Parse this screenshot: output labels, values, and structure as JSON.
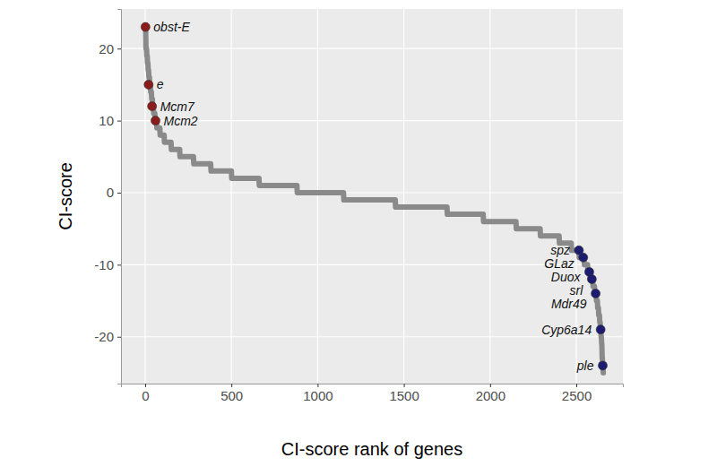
{
  "chart_data": {
    "type": "scatter",
    "x_label": "CI-score rank of genes",
    "y_label": "CI-score",
    "xlim": [
      -140,
      2770
    ],
    "ylim": [
      -26.5,
      25.5
    ],
    "xticks": [
      0,
      500,
      1000,
      1500,
      2000,
      2500
    ],
    "yticks": [
      -20,
      -10,
      0,
      10,
      20
    ],
    "grid": true,
    "series": [
      {
        "type": "line",
        "color": "#8a8a8a",
        "x": [
          0,
          3,
          5,
          8,
          10,
          12,
          14,
          16,
          18,
          20,
          22,
          25,
          27,
          30,
          32,
          36,
          38,
          42,
          44,
          48,
          50,
          56,
          58,
          66,
          68,
          85,
          87,
          110,
          112,
          150,
          152,
          200,
          202,
          280,
          282,
          380,
          382,
          500,
          502,
          660,
          662,
          880,
          882,
          1150,
          1152,
          1450,
          1452,
          1750,
          1752,
          1960,
          1962,
          2150,
          2152,
          2290,
          2292,
          2400,
          2402,
          2470,
          2472,
          2515,
          2517,
          2545,
          2547,
          2565,
          2567,
          2580,
          2582,
          2595,
          2597,
          2605,
          2607,
          2615,
          2617,
          2622,
          2624,
          2628,
          2630,
          2634,
          2636,
          2638,
          2640,
          2642,
          2644,
          2645,
          2647,
          2648,
          2650,
          2651,
          2653,
          2654,
          2656,
          2657
        ],
        "values": [
          23,
          23,
          20,
          20,
          19,
          19,
          18,
          18,
          17,
          17,
          16,
          16,
          15,
          15,
          14,
          14,
          13,
          13,
          12,
          12,
          11,
          11,
          10,
          10,
          9,
          9,
          8,
          8,
          7,
          7,
          6,
          6,
          5,
          5,
          4,
          4,
          3,
          3,
          2,
          2,
          1,
          1,
          0,
          0,
          -1,
          -1,
          -2,
          -2,
          -3,
          -3,
          -4,
          -4,
          -5,
          -5,
          -6,
          -6,
          -7,
          -7,
          -8,
          -8,
          -9,
          -9,
          -10,
          -10,
          -11,
          -11,
          -12,
          -12,
          -13,
          -13,
          -14,
          -14,
          -15,
          -15,
          -16,
          -16,
          -17,
          -17,
          -18,
          -18,
          -19,
          -19,
          -20,
          -20,
          -21,
          -21,
          -23,
          -23,
          -24,
          -24,
          -25,
          -25
        ]
      },
      {
        "type": "scatter",
        "color": "#8b1c1c",
        "marker": "circle",
        "x": [
          2,
          20,
          40,
          60
        ],
        "values": [
          23,
          15,
          12,
          10
        ],
        "labels": [
          "obst-E",
          "e",
          "Mcm7",
          "Mcm2"
        ]
      },
      {
        "type": "scatter",
        "color": "#1c1c70",
        "marker": "circle",
        "x": [
          2515,
          2540,
          2575,
          2590,
          2612,
          2641,
          2653
        ],
        "values": [
          -8,
          -9,
          -11,
          -12,
          -14,
          -19,
          -24
        ],
        "labels": [
          "spz",
          "GLaz",
          "Duox",
          "srl",
          "Mdr49",
          "Cyp6a14",
          "ple"
        ]
      }
    ]
  }
}
